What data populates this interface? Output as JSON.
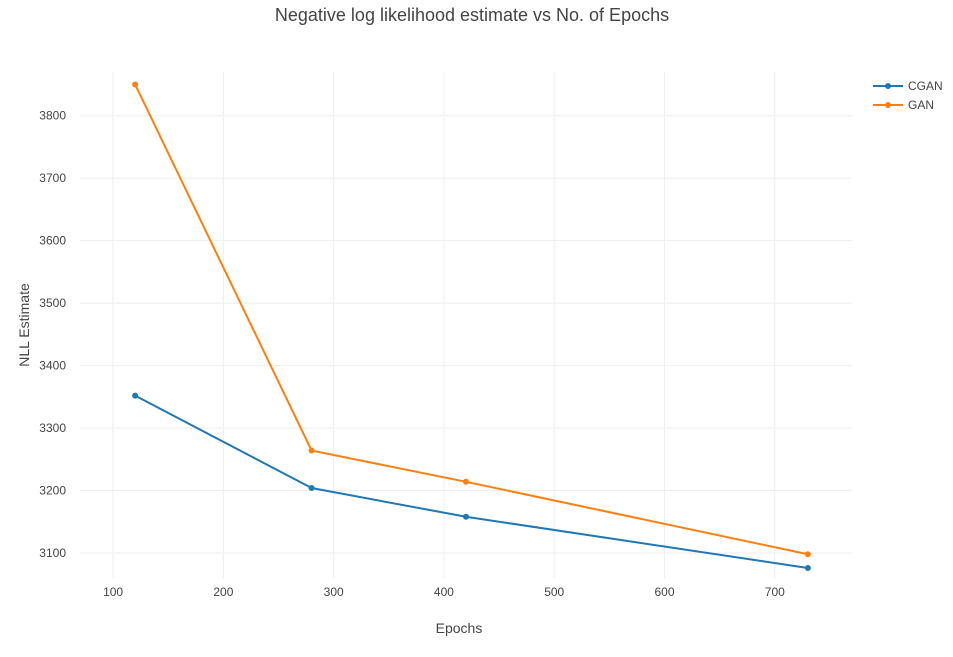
{
  "chart_data": {
    "type": "line",
    "title": "Negative log likelihood estimate vs No. of Epochs",
    "xlabel": "Epochs",
    "ylabel": "NLL Estimate",
    "xlim": [
      70,
      770
    ],
    "ylim": [
      3060,
      3870
    ],
    "x_ticks": [
      100,
      200,
      300,
      400,
      500,
      600,
      700
    ],
    "y_ticks": [
      3100,
      3200,
      3300,
      3400,
      3500,
      3600,
      3700,
      3800
    ],
    "grid": true,
    "legend_position": "top-right",
    "series": [
      {
        "name": "CGAN",
        "color": "#1f77b4",
        "x": [
          120,
          280,
          420,
          730
        ],
        "y": [
          3352,
          3204,
          3158,
          3076
        ]
      },
      {
        "name": "GAN",
        "color": "#ff7f0e",
        "x": [
          120,
          280,
          420,
          730
        ],
        "y": [
          3850,
          3264,
          3214,
          3098
        ]
      }
    ]
  }
}
